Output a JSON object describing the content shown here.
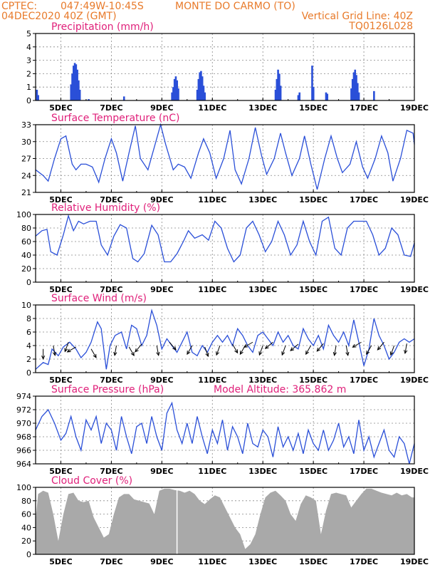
{
  "header": {
    "source": "CPTEC:",
    "coords": "047:49W-10:45S",
    "location": "MONTE DO CARMO (TO)",
    "run": "04DEC2020 40Z (GMT)",
    "grid_info": "Vertical Grid Line: 40Z",
    "code": "TQ0126L028"
  },
  "colors": {
    "header": "#e87a2a",
    "title": "#e0207a",
    "series": "#2a4fd8",
    "cloud": "#a9a9a9"
  },
  "x_axis": {
    "ticks": [
      "5DEC",
      "7DEC",
      "9DEC",
      "11DEC",
      "13DEC",
      "15DEC",
      "17DEC",
      "19DEC"
    ],
    "tick_days": [
      5,
      7,
      9,
      11,
      13,
      15,
      17,
      19
    ],
    "start_day": 4,
    "end_day": 19
  },
  "chart_data": [
    {
      "type": "bar",
      "title": "Precipitation (mm/h)",
      "ylim": [
        0,
        5
      ],
      "yticks": [
        0,
        1,
        2,
        3,
        4,
        5
      ],
      "grid": true,
      "bars": [
        [
          4.05,
          0.8
        ],
        [
          4.1,
          0.4
        ],
        [
          5.4,
          1.2
        ],
        [
          5.45,
          2.0
        ],
        [
          5.5,
          2.6
        ],
        [
          5.55,
          2.8
        ],
        [
          5.6,
          2.7
        ],
        [
          5.65,
          2.3
        ],
        [
          5.7,
          1.5
        ],
        [
          5.75,
          0.8
        ],
        [
          6.1,
          0.1
        ],
        [
          7.5,
          0.3
        ],
        [
          9.4,
          0.6
        ],
        [
          9.45,
          1.0
        ],
        [
          9.5,
          1.6
        ],
        [
          9.55,
          1.8
        ],
        [
          9.6,
          1.5
        ],
        [
          9.65,
          0.9
        ],
        [
          10.4,
          0.8
        ],
        [
          10.45,
          1.6
        ],
        [
          10.5,
          2.1
        ],
        [
          10.55,
          2.2
        ],
        [
          10.6,
          1.8
        ],
        [
          10.65,
          1.1
        ],
        [
          10.7,
          0.6
        ],
        [
          13.5,
          0.8
        ],
        [
          13.55,
          1.6
        ],
        [
          13.6,
          2.3
        ],
        [
          13.65,
          2.0
        ],
        [
          13.7,
          1.1
        ],
        [
          14.4,
          0.4
        ],
        [
          14.45,
          0.6
        ],
        [
          14.95,
          2.6
        ],
        [
          15.0,
          1.0
        ],
        [
          15.5,
          0.6
        ],
        [
          15.55,
          0.5
        ],
        [
          16.5,
          0.9
        ],
        [
          16.55,
          1.6
        ],
        [
          16.6,
          2.1
        ],
        [
          16.65,
          2.3
        ],
        [
          16.7,
          1.9
        ],
        [
          16.75,
          1.3
        ],
        [
          16.8,
          0.6
        ],
        [
          17.4,
          0.7
        ]
      ]
    },
    {
      "type": "line",
      "title": "Surface Temperature (nC)",
      "ylim": [
        21,
        33
      ],
      "yticks": [
        21,
        24,
        27,
        30,
        33
      ],
      "grid": true,
      "x": [
        4.0,
        4.3,
        4.5,
        4.75,
        5.0,
        5.2,
        5.45,
        5.6,
        5.8,
        6.0,
        6.25,
        6.5,
        6.75,
        7.0,
        7.2,
        7.45,
        7.7,
        7.95,
        8.15,
        8.45,
        8.7,
        8.95,
        9.15,
        9.45,
        9.65,
        9.9,
        10.15,
        10.45,
        10.65,
        10.9,
        11.15,
        11.45,
        11.7,
        11.9,
        12.15,
        12.45,
        12.7,
        12.95,
        13.15,
        13.45,
        13.7,
        13.9,
        14.15,
        14.45,
        14.65,
        14.9,
        15.15,
        15.45,
        15.7,
        15.95,
        16.15,
        16.45,
        16.7,
        16.95,
        17.15,
        17.45,
        17.7,
        17.95,
        18.15,
        18.45,
        18.7,
        18.95,
        19.0
      ],
      "values": [
        25,
        24,
        23,
        27,
        30.5,
        31,
        26,
        25,
        26,
        26,
        25.5,
        22.8,
        27,
        30.5,
        28,
        23,
        28,
        32.8,
        27,
        25,
        29,
        33,
        29.5,
        25,
        26,
        25.5,
        23.5,
        28,
        30.5,
        28,
        23.5,
        27,
        32,
        25,
        22.5,
        27,
        32.5,
        27.5,
        24.2,
        27,
        31.5,
        28,
        24,
        27,
        31,
        26,
        21.5,
        27,
        31,
        27,
        24.5,
        26,
        30,
        25.5,
        23.5,
        27,
        31,
        28,
        23,
        27,
        32,
        31.5,
        29.5
      ]
    },
    {
      "type": "line",
      "title": "Relative Humidity (%)",
      "ylim": [
        0,
        100
      ],
      "yticks": [
        0,
        20,
        40,
        60,
        80,
        100
      ],
      "grid": true,
      "x": [
        4.0,
        4.25,
        4.45,
        4.6,
        4.85,
        5.1,
        5.3,
        5.5,
        5.7,
        5.9,
        6.15,
        6.4,
        6.6,
        6.85,
        7.1,
        7.35,
        7.6,
        7.85,
        8.05,
        8.3,
        8.6,
        8.85,
        9.1,
        9.35,
        9.6,
        9.85,
        10.05,
        10.3,
        10.6,
        10.85,
        11.1,
        11.35,
        11.6,
        11.85,
        12.1,
        12.35,
        12.6,
        12.85,
        13.1,
        13.35,
        13.6,
        13.85,
        14.1,
        14.35,
        14.6,
        14.85,
        15.1,
        15.35,
        15.6,
        15.85,
        16.1,
        16.35,
        16.6,
        16.85,
        17.1,
        17.35,
        17.6,
        17.85,
        18.1,
        18.35,
        18.6,
        18.85,
        19.0
      ],
      "values": [
        68,
        76,
        78,
        45,
        40,
        70,
        98,
        76,
        90,
        86,
        90,
        90,
        55,
        40,
        68,
        85,
        80,
        35,
        30,
        42,
        84,
        70,
        30,
        30,
        42,
        60,
        76,
        65,
        70,
        62,
        90,
        80,
        50,
        30,
        40,
        80,
        90,
        70,
        45,
        60,
        90,
        70,
        40,
        55,
        90,
        60,
        40,
        90,
        96,
        50,
        40,
        80,
        90,
        90,
        90,
        70,
        40,
        50,
        80,
        70,
        40,
        38,
        58
      ]
    },
    {
      "type": "line",
      "title": "Surface Wind (m/s)",
      "ylim": [
        0,
        10
      ],
      "yticks": [
        0,
        2,
        4,
        6,
        8,
        10
      ],
      "grid": true,
      "x": [
        4.0,
        4.3,
        4.5,
        4.65,
        4.9,
        5.1,
        5.35,
        5.6,
        5.8,
        6.0,
        6.2,
        6.45,
        6.6,
        6.8,
        6.95,
        7.15,
        7.4,
        7.6,
        7.8,
        8.0,
        8.2,
        8.4,
        8.6,
        8.8,
        9.0,
        9.2,
        9.4,
        9.6,
        9.8,
        10.0,
        10.2,
        10.4,
        10.6,
        10.8,
        11.0,
        11.2,
        11.4,
        11.6,
        11.8,
        12.0,
        12.2,
        12.4,
        12.6,
        12.8,
        13.0,
        13.2,
        13.4,
        13.6,
        13.8,
        14.0,
        14.2,
        14.4,
        14.6,
        14.8,
        15.0,
        15.2,
        15.4,
        15.6,
        15.8,
        16.0,
        16.2,
        16.4,
        16.6,
        16.8,
        17.0,
        17.2,
        17.4,
        17.6,
        17.8,
        18.0,
        18.2,
        18.4,
        18.6,
        18.8,
        19.0
      ],
      "values": [
        0.5,
        1.5,
        1.2,
        3.5,
        2.5,
        3.8,
        4.5,
        3.5,
        2.2,
        3.0,
        4.5,
        7.5,
        6.5,
        0.5,
        4.0,
        5.5,
        6.0,
        3.5,
        7.0,
        6.5,
        4.0,
        5.5,
        9.2,
        7.0,
        3.5,
        5.0,
        4.0,
        3.0,
        4.5,
        6.0,
        3.0,
        2.5,
        4.0,
        3.0,
        4.5,
        5.5,
        4.5,
        5.5,
        4.0,
        6.5,
        5.5,
        4.0,
        3.0,
        5.5,
        6.0,
        5.0,
        4.0,
        6.0,
        4.5,
        5.5,
        4.0,
        3.5,
        6.5,
        5.0,
        4.0,
        5.5,
        3.5,
        7.0,
        5.5,
        4.5,
        6.0,
        4.0,
        7.8,
        4.5,
        1.0,
        3.5,
        8.0,
        5.5,
        4.0,
        2.0,
        3.0,
        4.5,
        5.0,
        4.5,
        5.0
      ],
      "arrows": [
        [
          4.3,
          270,
          3.5
        ],
        [
          4.7,
          280,
          4.0
        ],
        [
          5.3,
          250,
          4.5
        ],
        [
          5.6,
          210,
          3.8
        ],
        [
          6.2,
          300,
          3.5
        ],
        [
          7.2,
          260,
          4.0
        ],
        [
          7.7,
          300,
          3.8
        ],
        [
          8.2,
          230,
          4.2
        ],
        [
          8.8,
          280,
          4.0
        ],
        [
          9.3,
          310,
          4.5
        ],
        [
          10.2,
          240,
          4.0
        ],
        [
          10.7,
          290,
          3.8
        ],
        [
          11.3,
          250,
          4.0
        ],
        [
          11.8,
          300,
          4.2
        ],
        [
          12.3,
          240,
          4.0
        ],
        [
          12.6,
          210,
          4.5
        ],
        [
          13.0,
          250,
          4.0
        ],
        [
          13.4,
          220,
          4.5
        ],
        [
          13.9,
          250,
          4.0
        ],
        [
          14.4,
          220,
          4.2
        ],
        [
          14.9,
          240,
          4.0
        ],
        [
          15.4,
          230,
          4.3
        ],
        [
          15.9,
          260,
          4.0
        ],
        [
          16.3,
          280,
          4.0
        ],
        [
          16.9,
          210,
          4.5
        ],
        [
          17.3,
          240,
          4.0
        ],
        [
          17.8,
          230,
          4.5
        ],
        [
          18.2,
          250,
          4.0
        ],
        [
          18.7,
          260,
          4.3
        ]
      ]
    },
    {
      "type": "line",
      "title": "Surface Pressure (hPa)",
      "annotation": "Model Altitude: 365.862 m",
      "ylim": [
        964,
        974
      ],
      "yticks": [
        964,
        966,
        968,
        970,
        972,
        974
      ],
      "grid": true,
      "x": [
        4.0,
        4.25,
        4.5,
        4.75,
        5.0,
        5.2,
        5.4,
        5.6,
        5.8,
        6.0,
        6.2,
        6.4,
        6.6,
        6.8,
        7.0,
        7.2,
        7.4,
        7.6,
        7.8,
        8.0,
        8.2,
        8.4,
        8.6,
        8.8,
        9.0,
        9.2,
        9.4,
        9.6,
        9.8,
        10.0,
        10.2,
        10.4,
        10.6,
        10.8,
        11.0,
        11.2,
        11.4,
        11.6,
        11.8,
        12.0,
        12.2,
        12.4,
        12.6,
        12.8,
        13.0,
        13.2,
        13.4,
        13.6,
        13.8,
        14.0,
        14.2,
        14.4,
        14.6,
        14.8,
        15.0,
        15.2,
        15.4,
        15.6,
        15.8,
        16.0,
        16.2,
        16.4,
        16.6,
        16.8,
        17.0,
        17.2,
        17.4,
        17.6,
        17.8,
        18.0,
        18.2,
        18.4,
        18.6,
        18.8,
        19.0
      ],
      "values": [
        969,
        971,
        972,
        970,
        967.5,
        968.5,
        971,
        968,
        966,
        970.5,
        969,
        971,
        967,
        970,
        969,
        966,
        971,
        968,
        965.5,
        969.5,
        970,
        967,
        971,
        968,
        966,
        971.5,
        973,
        969,
        967,
        970,
        967,
        971,
        968,
        965.5,
        969,
        967,
        970.5,
        966,
        969.5,
        968,
        965.5,
        970,
        967,
        966.5,
        969,
        968,
        965,
        969.5,
        966.5,
        968,
        966,
        968.5,
        965.5,
        969,
        967,
        966,
        969,
        966,
        967.5,
        970,
        966.5,
        968,
        965.5,
        970.5,
        966,
        968,
        965,
        967,
        969,
        966,
        965,
        968,
        967,
        964,
        967
      ]
    },
    {
      "type": "area",
      "title": "Cloud Cover (%)",
      "ylim": [
        0,
        100
      ],
      "yticks": [
        0,
        20,
        40,
        60,
        80,
        100
      ],
      "grid": true,
      "x": [
        4.0,
        4.1,
        4.3,
        4.5,
        4.7,
        4.9,
        5.1,
        5.3,
        5.5,
        5.7,
        5.9,
        6.1,
        6.3,
        6.5,
        6.7,
        6.9,
        7.1,
        7.3,
        7.5,
        7.7,
        7.9,
        8.1,
        8.3,
        8.5,
        8.7,
        8.9,
        9.1,
        9.3,
        9.5,
        9.7,
        9.9,
        10.1,
        10.3,
        10.5,
        10.7,
        10.9,
        11.1,
        11.3,
        11.5,
        11.7,
        11.9,
        12.1,
        12.3,
        12.5,
        12.7,
        12.9,
        13.1,
        13.3,
        13.5,
        13.7,
        13.9,
        14.1,
        14.3,
        14.5,
        14.7,
        14.9,
        15.1,
        15.3,
        15.5,
        15.7,
        15.9,
        16.1,
        16.3,
        16.5,
        16.7,
        16.9,
        17.1,
        17.3,
        17.5,
        17.7,
        17.9,
        18.1,
        18.3,
        18.5,
        18.7,
        18.9,
        19.0
      ],
      "values": [
        50,
        90,
        95,
        92,
        60,
        20,
        60,
        90,
        92,
        80,
        78,
        80,
        55,
        40,
        25,
        30,
        60,
        85,
        90,
        90,
        82,
        80,
        78,
        76,
        60,
        95,
        98,
        98,
        96,
        95,
        92,
        95,
        90,
        80,
        75,
        82,
        88,
        85,
        70,
        55,
        40,
        30,
        8,
        15,
        30,
        60,
        85,
        92,
        95,
        88,
        80,
        60,
        50,
        75,
        88,
        85,
        80,
        30,
        65,
        90,
        92,
        90,
        88,
        70,
        80,
        90,
        98,
        98,
        95,
        92,
        90,
        88,
        92,
        88,
        90,
        85,
        85
      ]
    }
  ]
}
